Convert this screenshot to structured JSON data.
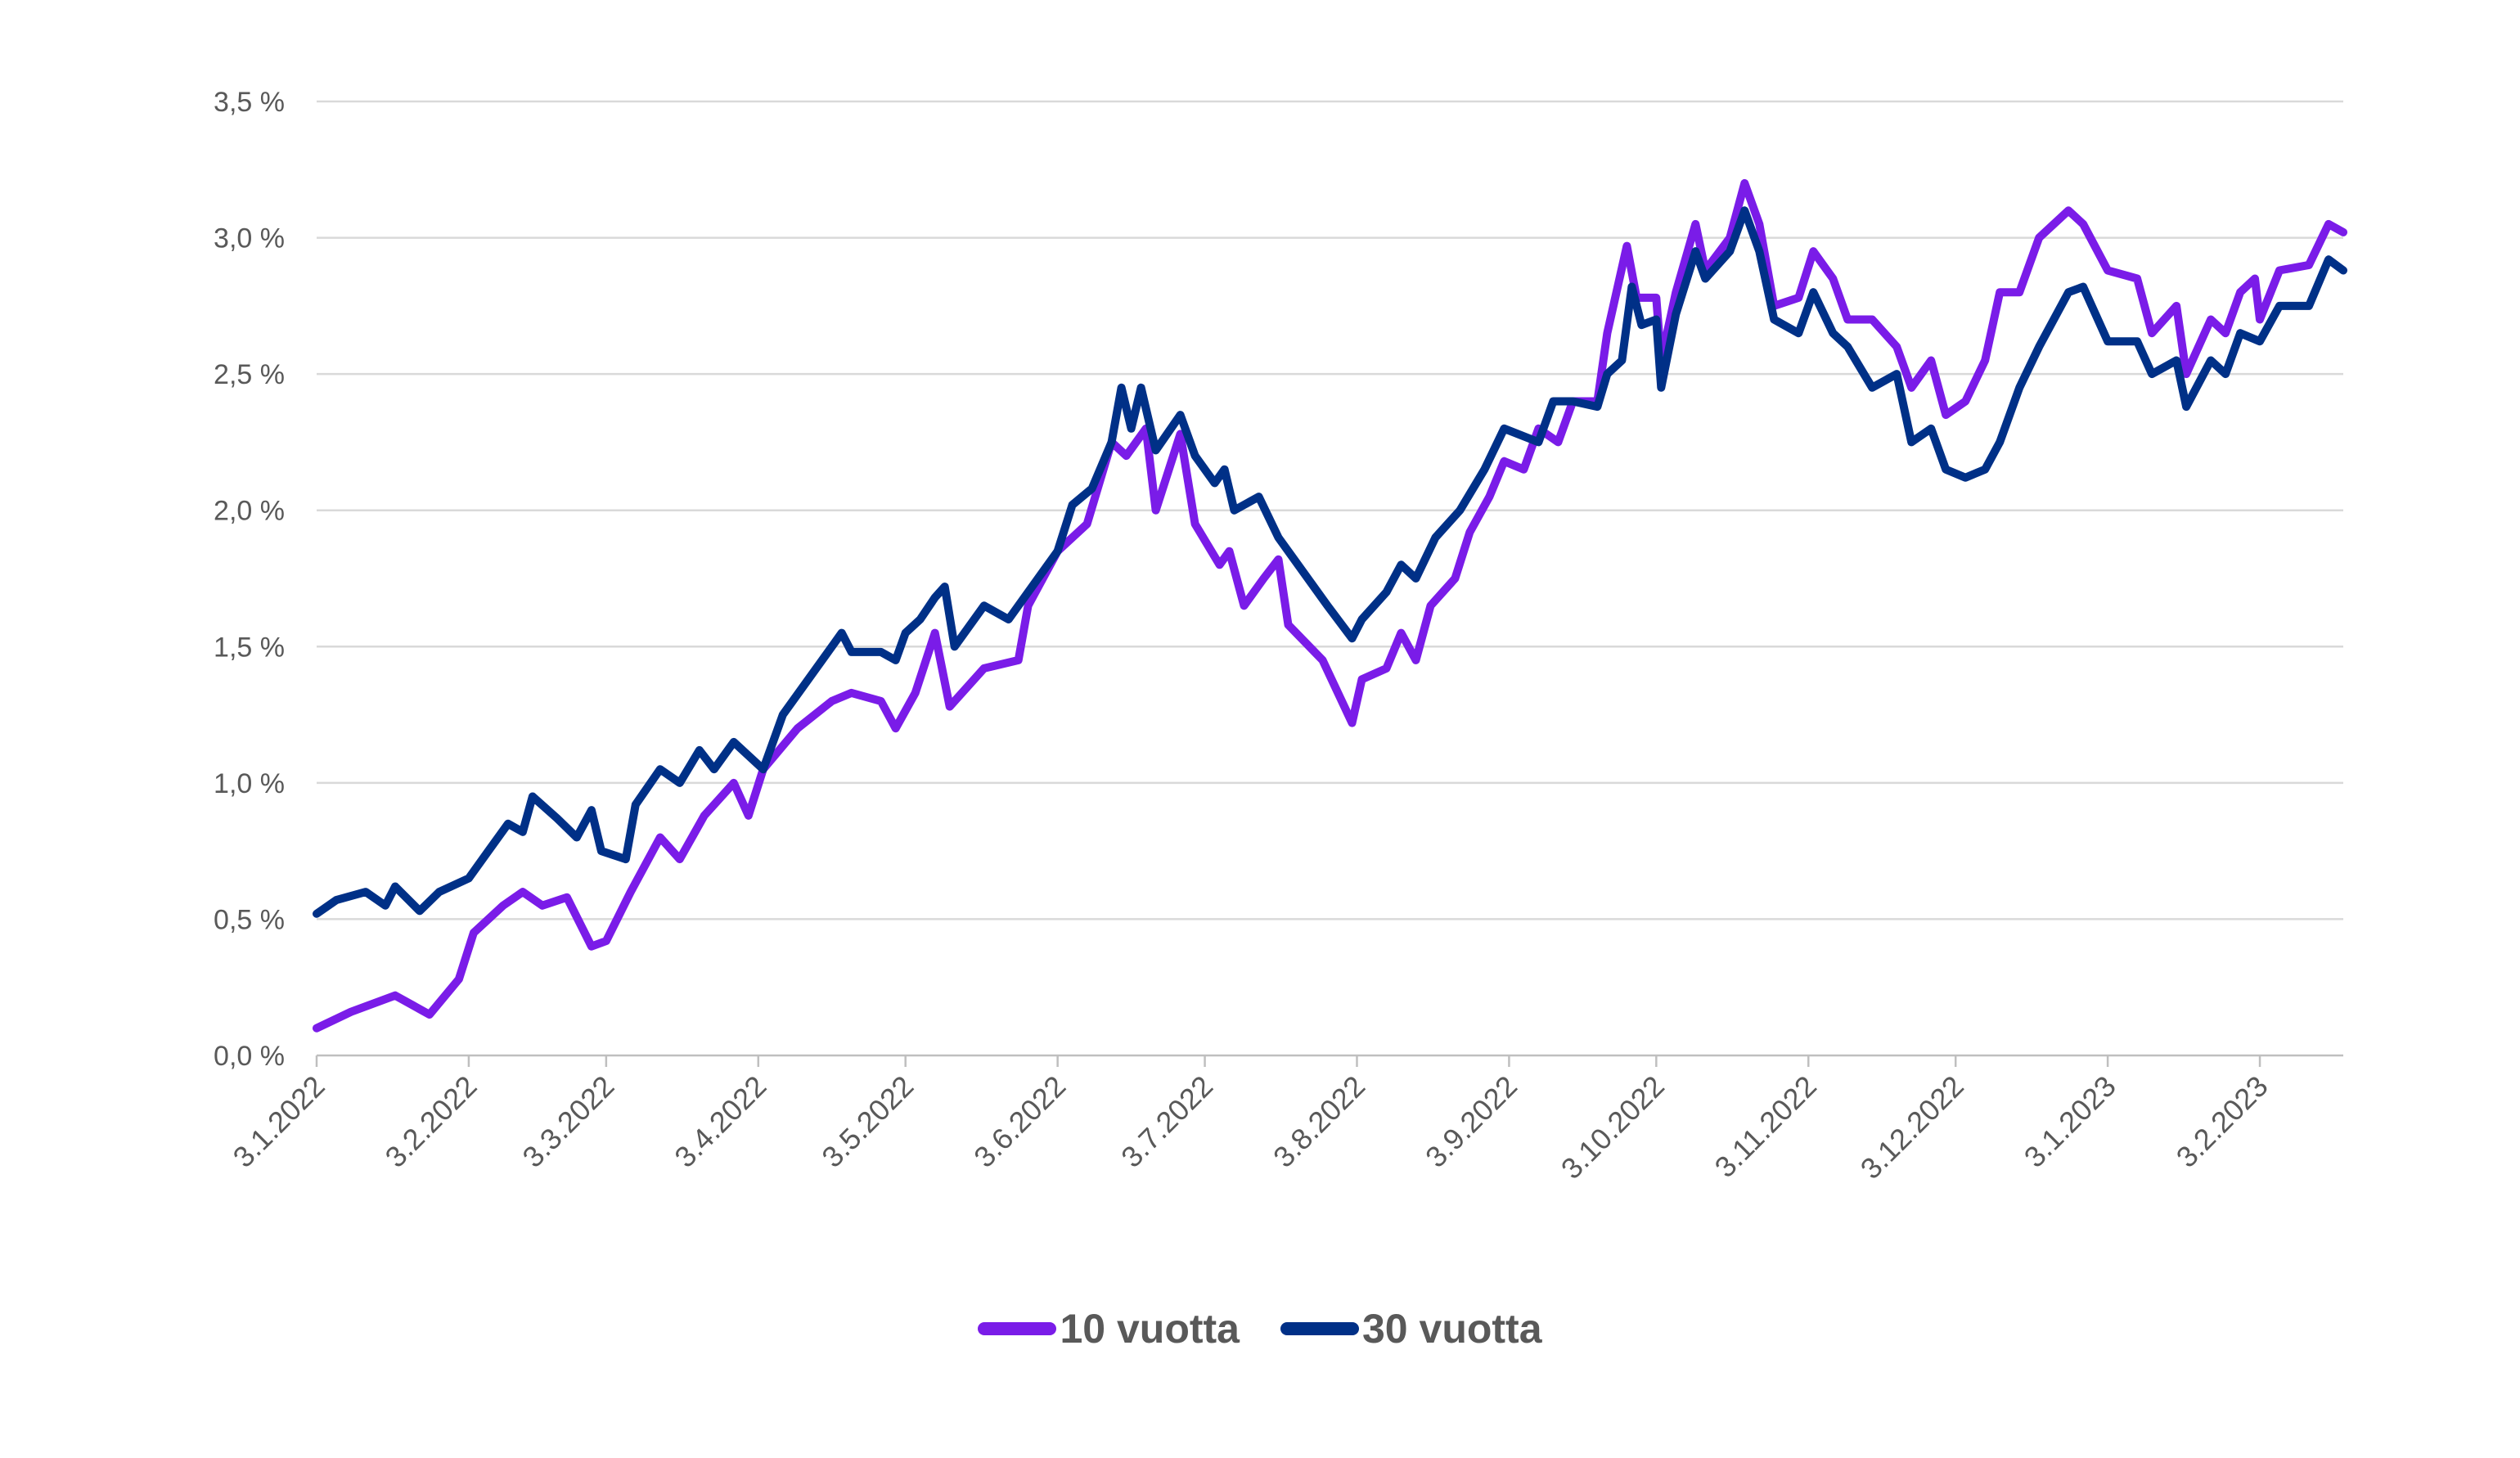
{
  "chart_data": {
    "type": "line",
    "title": "",
    "xlabel": "",
    "ylabel": "",
    "ylim": [
      0,
      3.5
    ],
    "y_ticks": [
      "0,0 %",
      "0,5 %",
      "1,0 %",
      "1,5 %",
      "2,0 %",
      "2,5 %",
      "3,0 %",
      "3,5 %"
    ],
    "y_tick_values": [
      0,
      0.5,
      1.0,
      1.5,
      2.0,
      2.5,
      3.0,
      3.5
    ],
    "x_ticks": [
      "3.1.2022",
      "3.2.2022",
      "3.3.2022",
      "3.4.2022",
      "3.5.2022",
      "3.6.2022",
      "3.7.2022",
      "3.8.2022",
      "3.9.2022",
      "3.10.2022",
      "3.11.2022",
      "3.12.2022",
      "3.1.2023",
      "3.2.2023"
    ],
    "x_tick_dates": [
      "2022-01-03",
      "2022-02-03",
      "2022-03-03",
      "2022-04-03",
      "2022-05-03",
      "2022-06-03",
      "2022-07-03",
      "2022-08-03",
      "2022-09-03",
      "2022-10-03",
      "2022-11-03",
      "2022-12-03",
      "2023-01-03",
      "2023-02-03"
    ],
    "xlim": [
      "2022-01-03",
      "2023-02-20"
    ],
    "grid": "horizontal",
    "legend": "bottom",
    "series": [
      {
        "name": "10 vuotta",
        "color": "#7A1CE8",
        "x": [
          "2022-01-03",
          "2022-01-10",
          "2022-01-19",
          "2022-01-26",
          "2022-02-01",
          "2022-02-04",
          "2022-02-10",
          "2022-02-14",
          "2022-02-18",
          "2022-02-23",
          "2022-02-28",
          "2022-03-03",
          "2022-03-08",
          "2022-03-14",
          "2022-03-18",
          "2022-03-23",
          "2022-03-29",
          "2022-04-01",
          "2022-04-04",
          "2022-04-11",
          "2022-04-18",
          "2022-04-22",
          "2022-04-28",
          "2022-05-01",
          "2022-05-05",
          "2022-05-09",
          "2022-05-12",
          "2022-05-19",
          "2022-05-26",
          "2022-05-28",
          "2022-06-03",
          "2022-06-09",
          "2022-06-14",
          "2022-06-17",
          "2022-06-21",
          "2022-06-23",
          "2022-06-28",
          "2022-07-01",
          "2022-07-06",
          "2022-07-08",
          "2022-07-11",
          "2022-07-15",
          "2022-07-18",
          "2022-07-20",
          "2022-07-27",
          "2022-08-02",
          "2022-08-04",
          "2022-08-09",
          "2022-08-12",
          "2022-08-15",
          "2022-08-18",
          "2022-08-23",
          "2022-08-26",
          "2022-08-30",
          "2022-09-02",
          "2022-09-06",
          "2022-09-09",
          "2022-09-13",
          "2022-09-16",
          "2022-09-21",
          "2022-09-23",
          "2022-09-27",
          "2022-09-29",
          "2022-10-03",
          "2022-10-04",
          "2022-10-07",
          "2022-10-11",
          "2022-10-13",
          "2022-10-18",
          "2022-10-21",
          "2022-10-24",
          "2022-10-27",
          "2022-11-01",
          "2022-11-04",
          "2022-11-08",
          "2022-11-11",
          "2022-11-16",
          "2022-11-21",
          "2022-11-24",
          "2022-11-28",
          "2022-12-01",
          "2022-12-05",
          "2022-12-09",
          "2022-12-12",
          "2022-12-16",
          "2022-12-20",
          "2022-12-26",
          "2022-12-29",
          "2023-01-03",
          "2023-01-09",
          "2023-01-12",
          "2023-01-17",
          "2023-01-19",
          "2023-01-24",
          "2023-01-27",
          "2023-01-30",
          "2023-02-02",
          "2023-02-03",
          "2023-02-07",
          "2023-02-13",
          "2023-02-17",
          "2023-02-20"
        ],
        "values": [
          0.1,
          0.16,
          0.22,
          0.15,
          0.28,
          0.45,
          0.55,
          0.6,
          0.55,
          0.58,
          0.4,
          0.42,
          0.6,
          0.8,
          0.72,
          0.88,
          1.0,
          0.88,
          1.05,
          1.2,
          1.3,
          1.33,
          1.3,
          1.2,
          1.33,
          1.55,
          1.28,
          1.42,
          1.45,
          1.65,
          1.85,
          1.95,
          2.25,
          2.2,
          2.3,
          2.0,
          2.28,
          1.95,
          1.8,
          1.85,
          1.65,
          1.75,
          1.82,
          1.58,
          1.45,
          1.22,
          1.38,
          1.42,
          1.55,
          1.45,
          1.65,
          1.75,
          1.92,
          2.05,
          2.18,
          2.15,
          2.3,
          2.25,
          2.4,
          2.4,
          2.65,
          2.97,
          2.78,
          2.78,
          2.55,
          2.8,
          3.05,
          2.88,
          3.0,
          3.2,
          3.05,
          2.75,
          2.78,
          2.95,
          2.85,
          2.7,
          2.7,
          2.6,
          2.45,
          2.55,
          2.35,
          2.4,
          2.55,
          2.8,
          2.8,
          3.0,
          3.1,
          3.05,
          2.88,
          2.85,
          2.65,
          2.75,
          2.5,
          2.7,
          2.65,
          2.8,
          2.85,
          2.7,
          2.88,
          2.9,
          3.05,
          3.02
        ]
      },
      {
        "name": "30 vuotta",
        "color": "#003087",
        "x": [
          "2022-01-03",
          "2022-01-07",
          "2022-01-13",
          "2022-01-17",
          "2022-01-19",
          "2022-01-24",
          "2022-01-28",
          "2022-02-03",
          "2022-02-07",
          "2022-02-11",
          "2022-02-14",
          "2022-02-16",
          "2022-02-21",
          "2022-02-25",
          "2022-02-28",
          "2022-03-02",
          "2022-03-07",
          "2022-03-09",
          "2022-03-14",
          "2022-03-18",
          "2022-03-22",
          "2022-03-25",
          "2022-03-29",
          "2022-04-04",
          "2022-04-08",
          "2022-04-14",
          "2022-04-20",
          "2022-04-22",
          "2022-04-28",
          "2022-05-01",
          "2022-05-03",
          "2022-05-06",
          "2022-05-09",
          "2022-05-11",
          "2022-05-13",
          "2022-05-19",
          "2022-05-24",
          "2022-05-30",
          "2022-06-03",
          "2022-06-06",
          "2022-06-10",
          "2022-06-14",
          "2022-06-16",
          "2022-06-18",
          "2022-06-20",
          "2022-06-23",
          "2022-06-28",
          "2022-07-01",
          "2022-07-05",
          "2022-07-07",
          "2022-07-09",
          "2022-07-14",
          "2022-07-18",
          "2022-07-22",
          "2022-07-28",
          "2022-08-02",
          "2022-08-04",
          "2022-08-09",
          "2022-08-12",
          "2022-08-15",
          "2022-08-19",
          "2022-08-24",
          "2022-08-29",
          "2022-09-02",
          "2022-09-09",
          "2022-09-12",
          "2022-09-16",
          "2022-09-21",
          "2022-09-23",
          "2022-09-26",
          "2022-09-28",
          "2022-09-30",
          "2022-10-03",
          "2022-10-04",
          "2022-10-07",
          "2022-10-11",
          "2022-10-13",
          "2022-10-18",
          "2022-10-21",
          "2022-10-24",
          "2022-10-27",
          "2022-11-01",
          "2022-11-04",
          "2022-11-08",
          "2022-11-11",
          "2022-11-16",
          "2022-11-21",
          "2022-11-24",
          "2022-11-28",
          "2022-12-01",
          "2022-12-05",
          "2022-12-09",
          "2022-12-12",
          "2022-12-16",
          "2022-12-20",
          "2022-12-26",
          "2022-12-29",
          "2023-01-03",
          "2023-01-09",
          "2023-01-12",
          "2023-01-17",
          "2023-01-19",
          "2023-01-24",
          "2023-01-27",
          "2023-01-30",
          "2023-02-03",
          "2023-02-07",
          "2023-02-13",
          "2023-02-17",
          "2023-02-20"
        ],
        "values": [
          0.52,
          0.57,
          0.6,
          0.55,
          0.62,
          0.53,
          0.6,
          0.65,
          0.75,
          0.85,
          0.82,
          0.95,
          0.87,
          0.8,
          0.9,
          0.75,
          0.72,
          0.92,
          1.05,
          1.0,
          1.12,
          1.05,
          1.15,
          1.05,
          1.25,
          1.4,
          1.55,
          1.48,
          1.48,
          1.45,
          1.55,
          1.6,
          1.68,
          1.72,
          1.5,
          1.65,
          1.6,
          1.75,
          1.85,
          2.02,
          2.08,
          2.25,
          2.45,
          2.3,
          2.45,
          2.22,
          2.35,
          2.2,
          2.1,
          2.15,
          2.0,
          2.05,
          1.9,
          1.8,
          1.65,
          1.53,
          1.6,
          1.7,
          1.8,
          1.75,
          1.9,
          2.0,
          2.15,
          2.3,
          2.25,
          2.4,
          2.4,
          2.38,
          2.5,
          2.55,
          2.82,
          2.68,
          2.7,
          2.45,
          2.72,
          2.95,
          2.85,
          2.95,
          3.1,
          2.95,
          2.7,
          2.65,
          2.8,
          2.65,
          2.6,
          2.45,
          2.5,
          2.25,
          2.3,
          2.15,
          2.12,
          2.15,
          2.25,
          2.45,
          2.6,
          2.8,
          2.82,
          2.62,
          2.62,
          2.5,
          2.55,
          2.38,
          2.55,
          2.5,
          2.65,
          2.62,
          2.75,
          2.75,
          2.92,
          2.88
        ]
      }
    ]
  }
}
